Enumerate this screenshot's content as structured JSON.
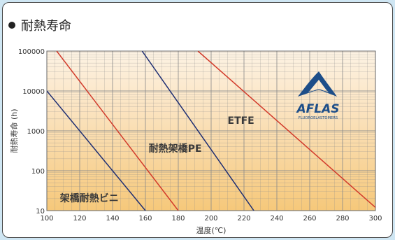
{
  "chart_data": {
    "type": "line",
    "title": "耐熱寿命",
    "xlabel": "温度(℃)",
    "ylabel": "耐熱寿命 (h)",
    "xlim": [
      100,
      300
    ],
    "ylim": [
      10,
      100000
    ],
    "yscale": "log",
    "grid": true,
    "x_ticks": [
      "100",
      "120",
      "140",
      "160",
      "180",
      "200",
      "220",
      "240",
      "260",
      "280",
      "300"
    ],
    "y_ticks": [
      "10",
      "100",
      "1000",
      "10000",
      "100000"
    ],
    "series": [
      {
        "name": "架橋耐熱ビニ",
        "color": "#1f2f73",
        "points": [
          [
            100,
            10000
          ],
          [
            160,
            10
          ]
        ]
      },
      {
        "name": "耐熱架橋PE",
        "color": "#d23a2a",
        "points": [
          [
            106,
            100000
          ],
          [
            180,
            10
          ]
        ]
      },
      {
        "name": "ETFE",
        "color": "#1f2f73",
        "points": [
          [
            158,
            100000
          ],
          [
            226,
            10
          ]
        ]
      },
      {
        "name": "",
        "color": "#d23a2a",
        "points": [
          [
            192,
            100000
          ],
          [
            300,
            12
          ]
        ]
      }
    ],
    "annotations": [
      {
        "text": "ETFE",
        "x": 210,
        "y": 1500
      },
      {
        "text": "耐熱架橋PE",
        "x": 162,
        "y": 300
      },
      {
        "text": "架橋耐熱ビニ",
        "x": 108,
        "y": 17
      }
    ]
  },
  "logo": {
    "name": "AFLAS",
    "sub": "FLUOROELASTOMERS"
  },
  "colors": {
    "grid": "#8a8a8a",
    "band_top": "#fdf3e4",
    "band_bottom": "#f6c97a"
  }
}
